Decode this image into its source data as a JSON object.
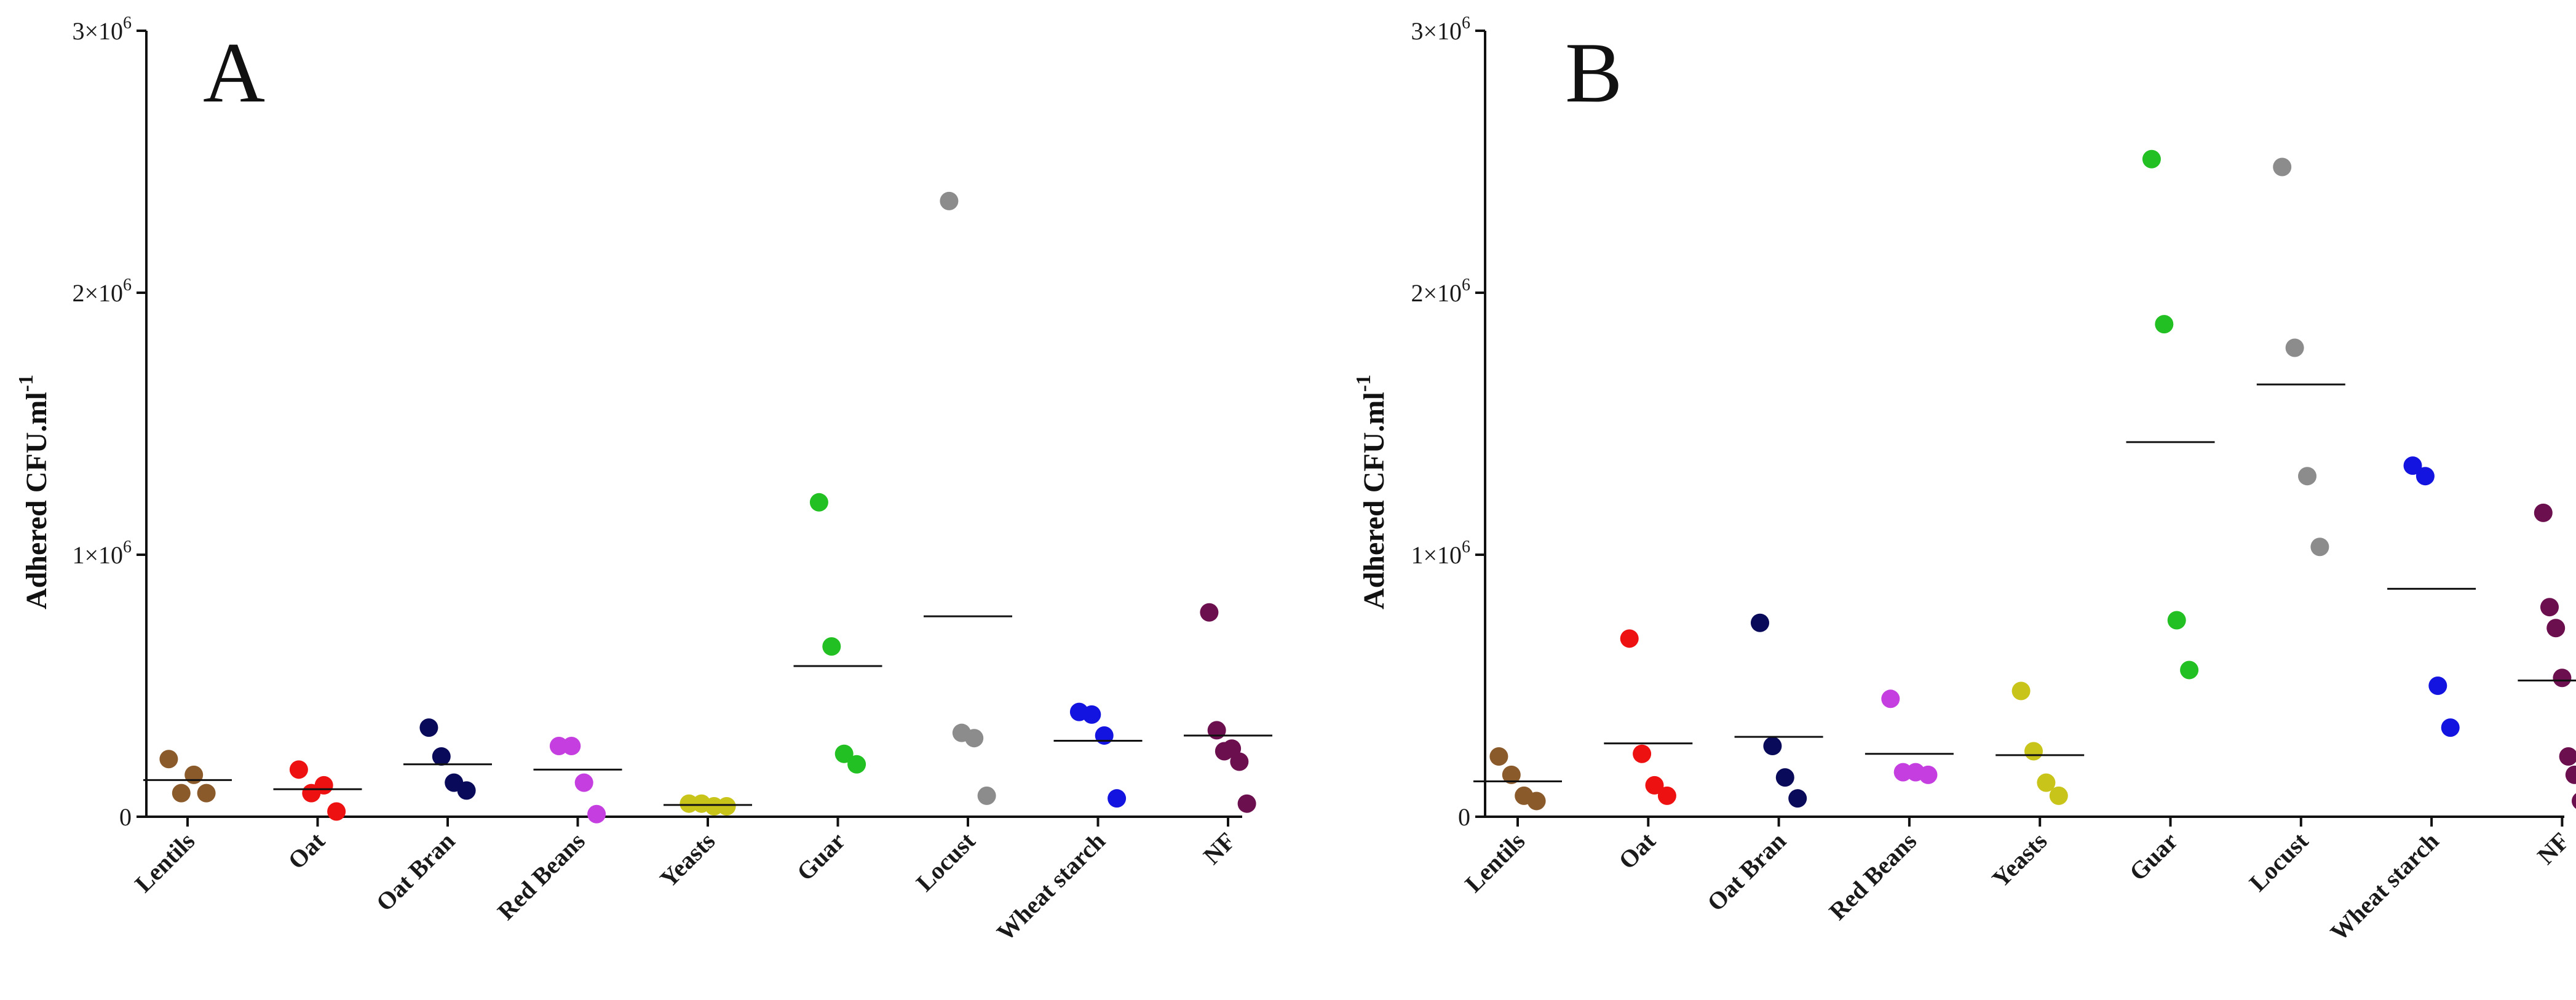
{
  "chart_data": [
    {
      "type": "scatter",
      "panel_label": "A",
      "ylabel": "Adhered CFU.ml",
      "ylabel_superscript": "-1",
      "ylim": [
        0,
        3000000
      ],
      "yticks": [
        {
          "value": 0,
          "base": "0",
          "exp": ""
        },
        {
          "value": 1000000,
          "base": "1×10",
          "exp": "6"
        },
        {
          "value": 2000000,
          "base": "2×10",
          "exp": "6"
        },
        {
          "value": 3000000,
          "base": "3×10",
          "exp": "6"
        }
      ],
      "categories": [
        "Lentils",
        "Oat",
        "Oat Bran",
        "Red Beans",
        "Yeasts",
        "Guar",
        "Locust",
        "Wheat starch",
        "NF"
      ],
      "series": [
        {
          "name": "Lentils",
          "color": "#8B5A2B",
          "values": [
            220000,
            90000,
            160000,
            90000
          ],
          "mean": 140000
        },
        {
          "name": "Oat",
          "color": "#EE1111",
          "values": [
            180000,
            90000,
            120000,
            20000
          ],
          "mean": 105000
        },
        {
          "name": "Oat Bran",
          "color": "#0A0A5A",
          "values": [
            340000,
            230000,
            130000,
            100000
          ],
          "mean": 200000
        },
        {
          "name": "Red Beans",
          "color": "#C43EE0",
          "values": [
            270000,
            270000,
            130000,
            10000
          ],
          "mean": 180000
        },
        {
          "name": "Yeasts",
          "color": "#C8C41A",
          "values": [
            50000,
            50000,
            40000,
            40000
          ],
          "mean": 45000
        },
        {
          "name": "Guar",
          "color": "#22C022",
          "values": [
            1200000,
            650000,
            240000,
            200000
          ],
          "mean": 575000
        },
        {
          "name": "Locust",
          "color": "#8C8C8C",
          "values": [
            2350000,
            320000,
            300000,
            80000
          ],
          "mean": 765000
        },
        {
          "name": "Wheat starch",
          "color": "#1414E0",
          "values": [
            400000,
            390000,
            310000,
            70000
          ],
          "mean": 290000
        },
        {
          "name": "NF",
          "color": "#6B0F4E",
          "values": [
            780000,
            330000,
            250000,
            260000,
            210000,
            50000
          ],
          "mean": 310000
        }
      ]
    },
    {
      "type": "scatter",
      "panel_label": "B",
      "ylabel": "Adhered CFU.ml",
      "ylabel_superscript": "-1",
      "ylim": [
        0,
        3000000
      ],
      "yticks": [
        {
          "value": 0,
          "base": "0",
          "exp": ""
        },
        {
          "value": 1000000,
          "base": "1×10",
          "exp": "6"
        },
        {
          "value": 2000000,
          "base": "2×10",
          "exp": "6"
        },
        {
          "value": 3000000,
          "base": "3×10",
          "exp": "6"
        }
      ],
      "categories": [
        "Lentils",
        "Oat",
        "Oat Bran",
        "Red Beans",
        "Yeasts",
        "Guar",
        "Locust",
        "Wheat starch",
        "NF"
      ],
      "series": [
        {
          "name": "Lentils",
          "color": "#8B5A2B",
          "values": [
            230000,
            160000,
            80000,
            60000
          ],
          "mean": 135000
        },
        {
          "name": "Oat",
          "color": "#EE1111",
          "values": [
            680000,
            240000,
            120000,
            80000
          ],
          "mean": 280000
        },
        {
          "name": "Oat Bran",
          "color": "#0A0A5A",
          "values": [
            740000,
            270000,
            150000,
            70000
          ],
          "mean": 305000
        },
        {
          "name": "Red Beans",
          "color": "#C43EE0",
          "values": [
            450000,
            170000,
            170000,
            160000
          ],
          "mean": 240000
        },
        {
          "name": "Yeasts",
          "color": "#C8C41A",
          "values": [
            480000,
            250000,
            130000,
            80000
          ],
          "mean": 235000
        },
        {
          "name": "Guar",
          "color": "#22C022",
          "values": [
            2510000,
            1880000,
            750000,
            560000
          ],
          "mean": 1430000
        },
        {
          "name": "Locust",
          "color": "#8C8C8C",
          "values": [
            2480000,
            1790000,
            1300000,
            1030000
          ],
          "mean": 1650000
        },
        {
          "name": "Wheat starch",
          "color": "#1414E0",
          "values": [
            1340000,
            1300000,
            500000,
            340000
          ],
          "mean": 870000
        },
        {
          "name": "NF",
          "color": "#6B0F4E",
          "values": [
            1160000,
            800000,
            720000,
            530000,
            230000,
            160000,
            60000
          ],
          "mean": 520000
        }
      ]
    }
  ]
}
